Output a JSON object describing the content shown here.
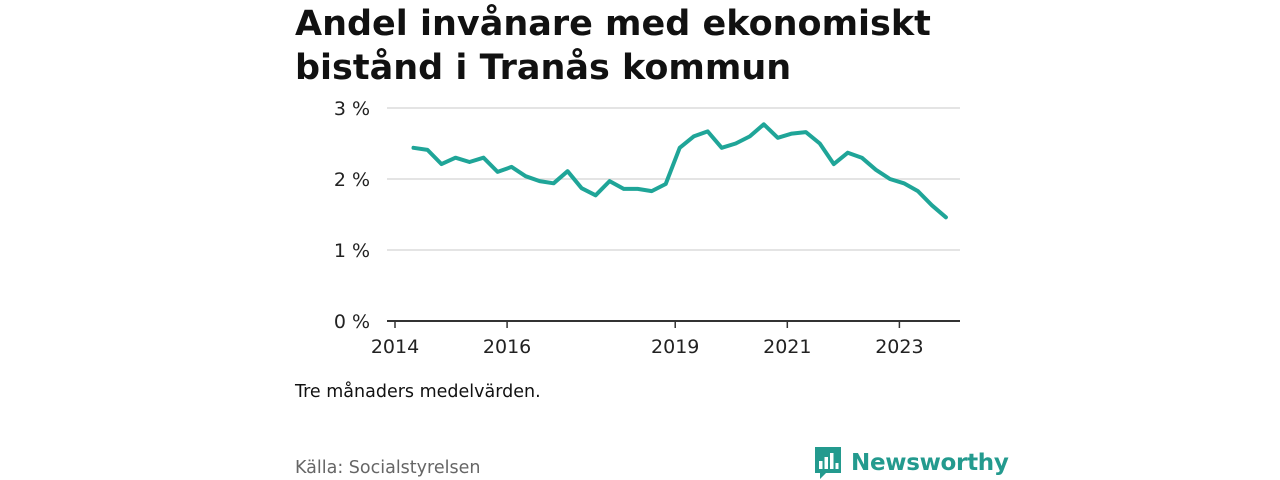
{
  "title": "Andel invånare med ekonomiskt bistånd i Tranås kommun",
  "subtitle": "Tre månaders medelvärden.",
  "source": "Källa: Socialstyrelsen",
  "brand": {
    "name": "Newsworthy",
    "color": "#239a8e"
  },
  "chart_data": {
    "type": "line",
    "title": "Andel invånare med ekonomiskt bistånd i Tranås kommun",
    "xlabel": "",
    "ylabel": "",
    "ylim": [
      0,
      3
    ],
    "y_ticks": [
      {
        "value": 0,
        "label": "0 %"
      },
      {
        "value": 1,
        "label": "1 %"
      },
      {
        "value": 2,
        "label": "2 %"
      },
      {
        "value": 3,
        "label": "3 %"
      }
    ],
    "x_ticks": [
      {
        "value": 2014,
        "label": "2014"
      },
      {
        "value": 2016,
        "label": "2016"
      },
      {
        "value": 2019,
        "label": "2019"
      },
      {
        "value": 2021,
        "label": "2021"
      },
      {
        "value": 2023,
        "label": "2023"
      }
    ],
    "xlim": [
      2014.0,
      2024.3
    ],
    "grid": true,
    "series": [
      {
        "name": "Andel invånare med ekonomiskt bistånd",
        "color": "#1fa598",
        "x": [
          2014.33,
          2014.58,
          2014.83,
          2015.08,
          2015.33,
          2015.58,
          2015.83,
          2016.08,
          2016.33,
          2016.58,
          2016.83,
          2017.08,
          2017.33,
          2017.58,
          2017.83,
          2018.08,
          2018.33,
          2018.58,
          2018.83,
          2019.08,
          2019.33,
          2019.58,
          2019.83,
          2020.08,
          2020.33,
          2020.58,
          2020.83,
          2021.08,
          2021.33,
          2021.58,
          2021.83,
          2022.08,
          2022.33,
          2022.58,
          2022.83,
          2023.08,
          2023.33,
          2023.58,
          2023.83
        ],
        "values": [
          2.44,
          2.41,
          2.21,
          2.3,
          2.24,
          2.3,
          2.1,
          2.17,
          2.04,
          1.97,
          1.94,
          2.11,
          1.87,
          1.77,
          1.97,
          1.86,
          1.86,
          1.83,
          1.93,
          2.44,
          2.6,
          2.67,
          2.44,
          2.5,
          2.6,
          2.77,
          2.58,
          2.64,
          2.66,
          2.5,
          2.21,
          2.37,
          2.3,
          2.13,
          2.0,
          1.94,
          1.83,
          1.63,
          1.46
        ]
      }
    ]
  }
}
